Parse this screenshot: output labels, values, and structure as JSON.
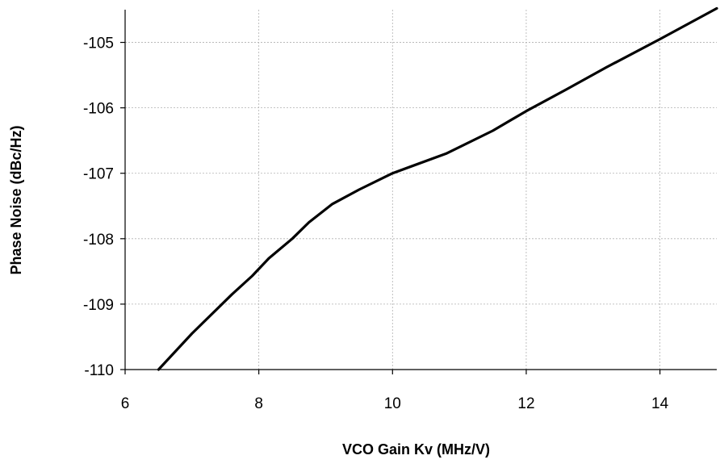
{
  "chart_data": {
    "type": "line",
    "title": "",
    "xlabel": "VCO Gain Kv (MHz/V)",
    "ylabel": "Phase Noise (dBc/Hz)",
    "xlim": [
      6,
      14.85
    ],
    "ylim": [
      -110,
      -104.5
    ],
    "xticks": [
      6,
      8,
      10,
      12,
      14
    ],
    "yticks": [
      -110,
      -109,
      -108,
      -107,
      -106,
      -105
    ],
    "xtick_labels": [
      "6",
      "8",
      "10",
      "12",
      "14"
    ],
    "ytick_labels": [
      "-110",
      "-109",
      "-108",
      "-107",
      "-106",
      "-105"
    ],
    "grid": true,
    "legend": "none",
    "series": [
      {
        "color": "#000000",
        "x": [
          6.5,
          7.0,
          7.6,
          7.9,
          8.15,
          8.5,
          8.75,
          9.1,
          9.5,
          10.0,
          10.8,
          11.5,
          12.0,
          12.6,
          13.2,
          14.0,
          14.85
        ],
        "y": [
          -110.0,
          -109.45,
          -108.85,
          -108.57,
          -108.3,
          -108.0,
          -107.75,
          -107.47,
          -107.25,
          -107.0,
          -106.7,
          -106.35,
          -106.05,
          -105.72,
          -105.38,
          -104.95,
          -104.48
        ]
      }
    ]
  }
}
